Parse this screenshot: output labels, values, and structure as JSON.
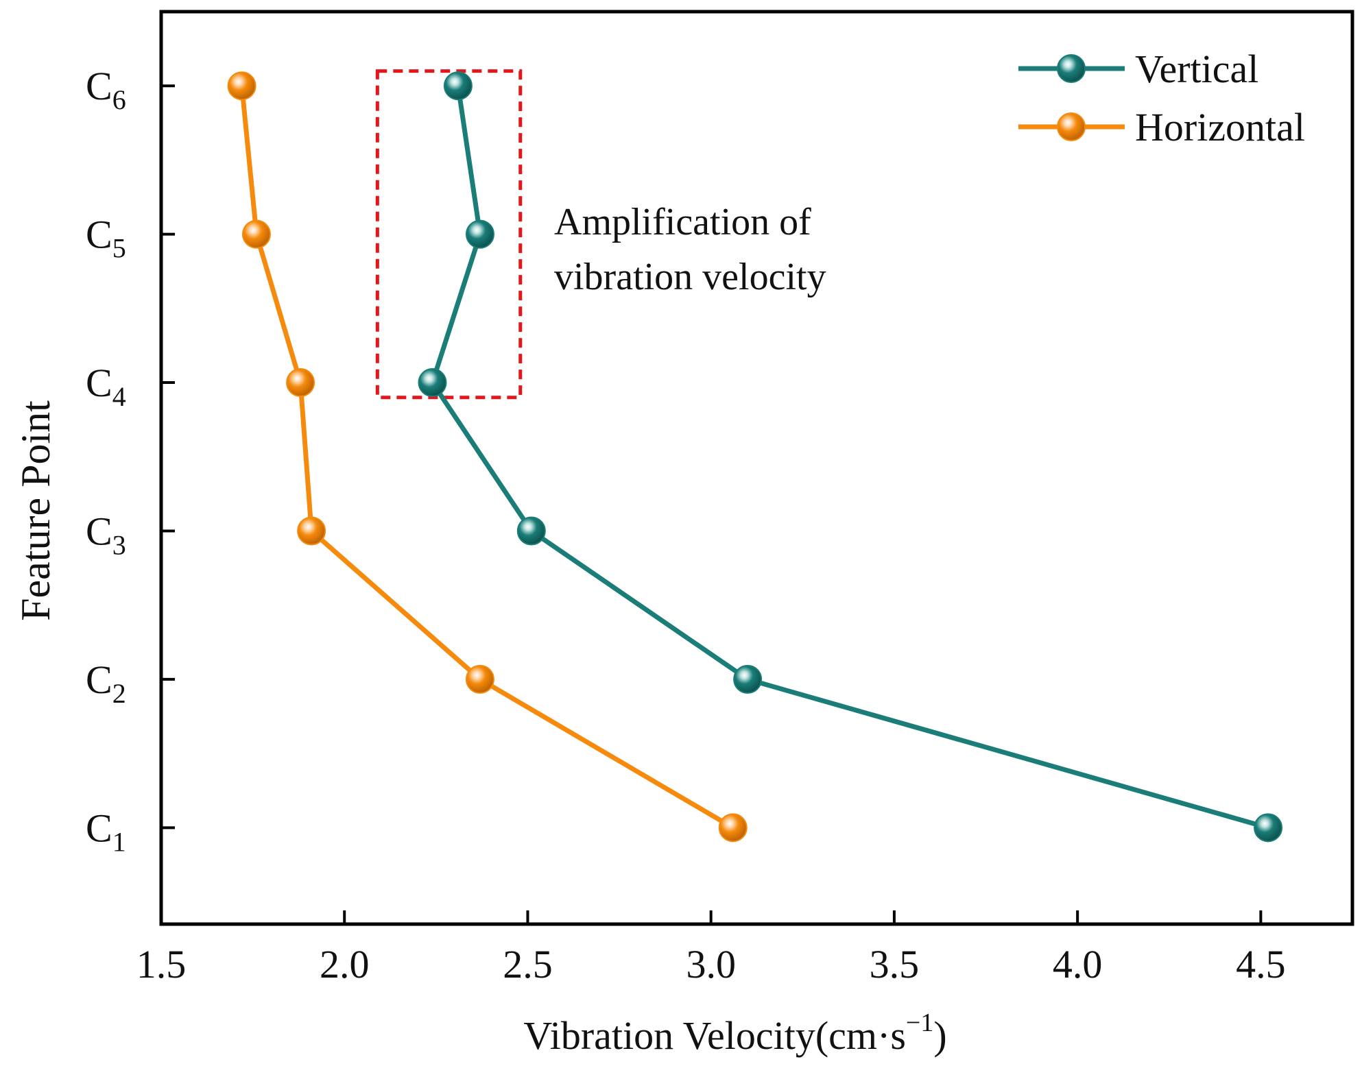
{
  "chart_data": {
    "type": "line",
    "xlabel": "Vibration Velocity(cm·s",
    "xlabel_sup": "−1",
    "xlabel_close": ")",
    "ylabel": "Feature Point",
    "xlim": [
      1.5,
      4.75
    ],
    "ylim": [
      0.35,
      6.5
    ],
    "x_ticks": [
      1.5,
      2.0,
      2.5,
      3.0,
      3.5,
      4.0,
      4.5
    ],
    "x_tick_labels": [
      "1.5",
      "2.0",
      "2.5",
      "3.0",
      "3.5",
      "4.0",
      "4.5"
    ],
    "y_ticks": [
      1,
      2,
      3,
      4,
      5,
      6
    ],
    "y_tick_labels": [
      {
        "base": "C",
        "sub": "1"
      },
      {
        "base": "C",
        "sub": "2"
      },
      {
        "base": "C",
        "sub": "3"
      },
      {
        "base": "C",
        "sub": "4"
      },
      {
        "base": "C",
        "sub": "5"
      },
      {
        "base": "C",
        "sub": "6"
      }
    ],
    "series": [
      {
        "name": "Vertical",
        "color": "#1a7d78",
        "points": [
          {
            "label": "C1",
            "x": 4.52,
            "y": 1
          },
          {
            "label": "C2",
            "x": 3.1,
            "y": 2
          },
          {
            "label": "C3",
            "x": 2.51,
            "y": 3
          },
          {
            "label": "C4",
            "x": 2.24,
            "y": 4
          },
          {
            "label": "C5",
            "x": 2.37,
            "y": 5
          },
          {
            "label": "C6",
            "x": 2.31,
            "y": 6
          }
        ]
      },
      {
        "name": "Horizontal",
        "color": "#f58a0c",
        "points": [
          {
            "label": "C1",
            "x": 3.06,
            "y": 1
          },
          {
            "label": "C2",
            "x": 2.37,
            "y": 2
          },
          {
            "label": "C3",
            "x": 1.91,
            "y": 3
          },
          {
            "label": "C4",
            "x": 1.88,
            "y": 4
          },
          {
            "label": "C5",
            "x": 1.76,
            "y": 5
          },
          {
            "label": "C6",
            "x": 1.72,
            "y": 6
          }
        ]
      }
    ],
    "legend_position": "top-right",
    "annotation": {
      "lines": [
        "Amplification of",
        "vibration velocity"
      ],
      "highlight_box": {
        "x_range": [
          2.09,
          2.48
        ],
        "y_range": [
          3.9,
          6.1
        ],
        "color": "#e3161c",
        "style": "dashed"
      }
    }
  }
}
